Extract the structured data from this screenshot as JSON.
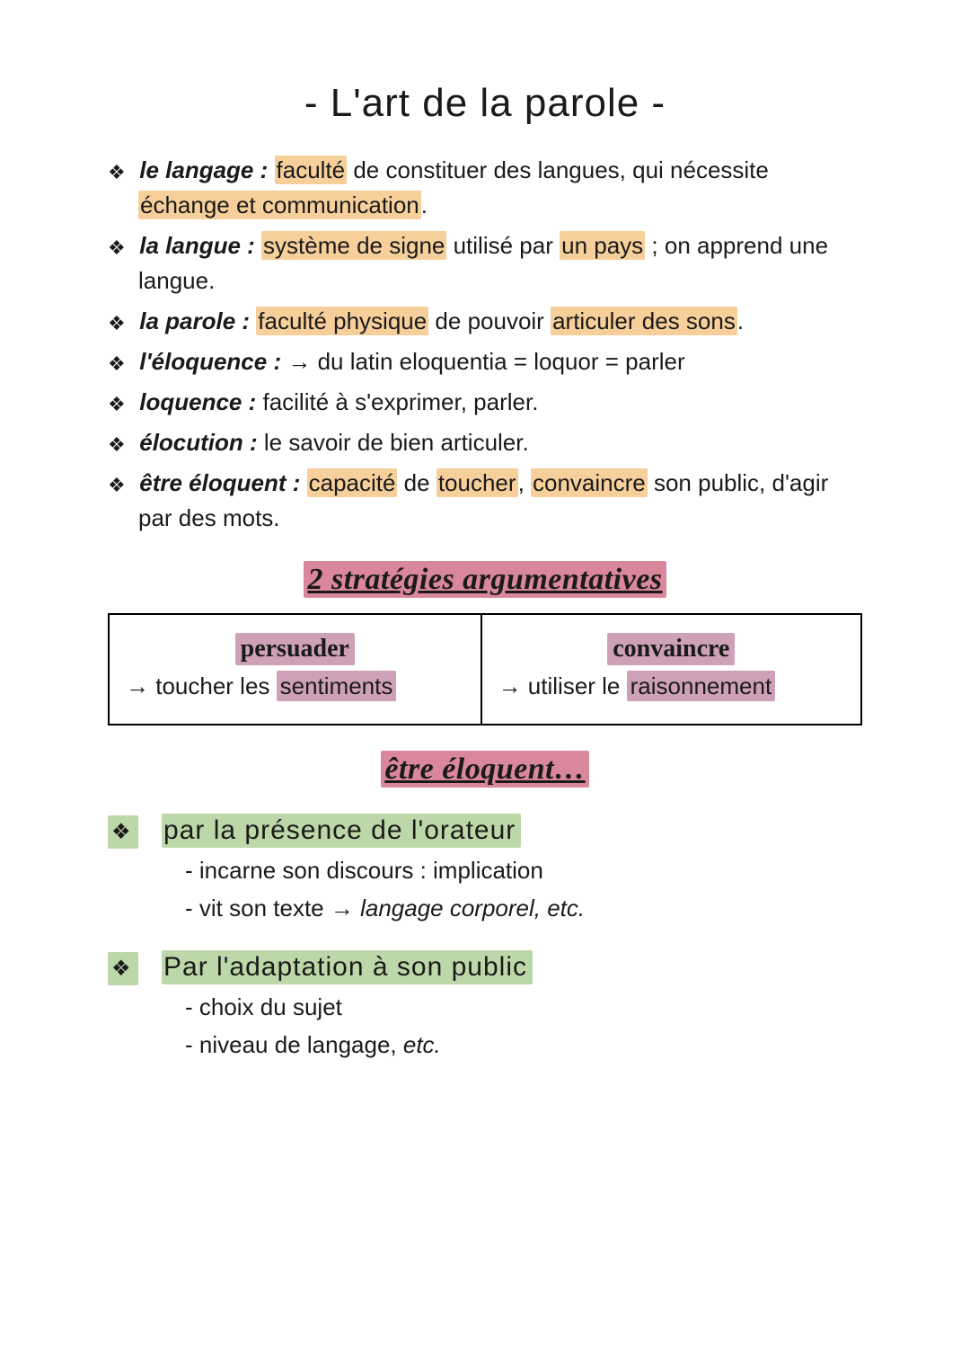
{
  "colors": {
    "orange_highlight": "#f6cf9b",
    "pink_highlight": "#da879c",
    "plum_highlight": "#cfa1b8",
    "green_highlight": "#bdd8a8",
    "text": "#1a1a1a",
    "background": "#ffffff"
  },
  "title": "- L'art de la parole -",
  "defs": {
    "0": {
      "term": "le langage :",
      "t1": "faculté",
      "t2": " de constituer des langues, qui nécessite ",
      "t3": "échange et communication",
      "t4": "."
    },
    "1": {
      "term": "la langue :",
      "t1": "système de signe",
      "t2": " utilisé par ",
      "t3": "un pays",
      "t4": " ; on apprend une langue."
    },
    "2": {
      "term": "la parole :",
      "t1": "faculté physique",
      "t2": " de pouvoir ",
      "t3": "articuler des sons",
      "t4": "."
    },
    "3": {
      "term": "l'éloquence :",
      "tail": " → du latin eloquentia = loquor = parler"
    },
    "4": {
      "term": "loquence :",
      "tail": " facilité à s'exprimer, parler."
    },
    "5": {
      "term": "élocution :",
      "tail": " le savoir de bien articuler."
    },
    "6": {
      "term": "être éloquent :",
      "t1": "capacité",
      "t2": " de ",
      "t3": "toucher",
      "t4": ", ",
      "t5": "convaincre",
      "t6": " son public, d'agir par des mots."
    }
  },
  "section1": "2 stratégies argumentatives",
  "table": {
    "col1_head": "persuader",
    "col2_head": "convaincre",
    "col1_pre": "→ toucher les ",
    "col1_hl": "sentiments",
    "col2_pre": "→ utiliser le ",
    "col2_hl": "raisonnement"
  },
  "section2": "être éloquent…",
  "blocks": {
    "0": {
      "label": "par la présence de l'orateur",
      "i0": "incarne son discours : implication",
      "i1a": "vit son texte → ",
      "i1b": "langage corporel, etc."
    },
    "1": {
      "label": "Par l'adaptation à son public",
      "i0": "choix du sujet",
      "i1a": "niveau de langage, ",
      "i1b": "etc."
    }
  }
}
